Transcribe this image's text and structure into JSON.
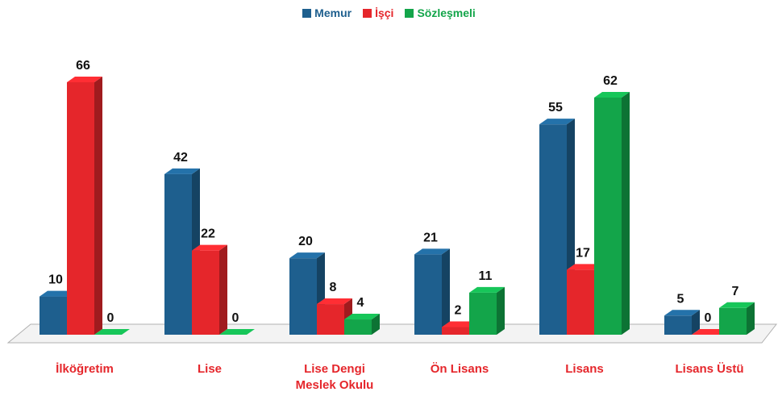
{
  "chart_data": {
    "type": "bar3d",
    "categories": [
      "İlköğretim",
      "Lise",
      "Lise Dengi Meslek Okulu",
      "Ön Lisans",
      "Lisans",
      "Lisans Üstü"
    ],
    "series": [
      {
        "name": "Memur",
        "color": "#1e5f8e",
        "values": [
          10,
          42,
          20,
          21,
          55,
          5
        ]
      },
      {
        "name": "İşçi",
        "color": "#e5262b",
        "values": [
          66,
          22,
          8,
          2,
          17,
          0
        ]
      },
      {
        "name": "Sözleşmeli",
        "color": "#13a54a",
        "values": [
          0,
          0,
          4,
          11,
          62,
          7
        ]
      }
    ],
    "legend": "top"
  }
}
